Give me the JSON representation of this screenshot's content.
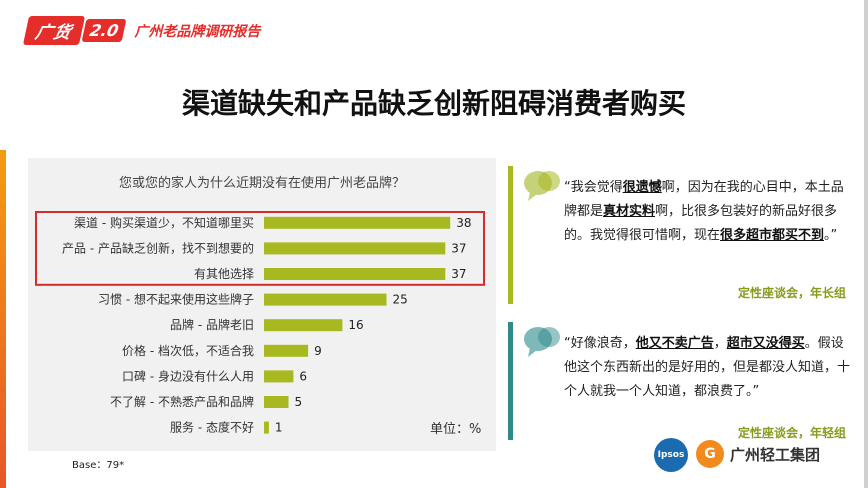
{
  "header": {
    "brand_logo": "广货",
    "brand_version": "2.0",
    "brand_subtitle": "广州老品牌调研报告"
  },
  "title": "渠道缺失和产品缺乏创新阻碍消费者购买",
  "chart_data": {
    "type": "bar",
    "orientation": "horizontal",
    "title": "您或您的家人为什么近期没有在使用广州老品牌？",
    "categories": [
      "渠道 - 购买渠道少，不知道哪里买",
      "产品 - 产品缺乏创新，找不到想要的",
      "有其他选择",
      "习惯 - 想不起来使用这些牌子",
      "品牌 - 品牌老旧",
      "价格 - 档次低，不适合我",
      "口碑 - 身边没有什么人用",
      "不了解 - 不熟悉产品和品牌",
      "服务 - 态度不好"
    ],
    "values": [
      38,
      37,
      37,
      25,
      16,
      9,
      6,
      5,
      1
    ],
    "highlighted": [
      0,
      1,
      2
    ],
    "bar_color": "#a8b820",
    "highlight_border_color": "#d62b2b",
    "unit_label": "单位：%",
    "xlim": [
      0,
      40
    ]
  },
  "base_note": "Base：79*",
  "quotes": [
    {
      "segments": [
        {
          "t": "“我会觉得",
          "b": false
        },
        {
          "t": "很遗憾",
          "b": true
        },
        {
          "t": "啊，因为在我的心目中，本土品牌都是",
          "b": false
        },
        {
          "t": "真材实料",
          "b": true
        },
        {
          "t": "啊，比很多包装好的新品好很多的。我觉得很可惜啊，现在",
          "b": false
        },
        {
          "t": "很多超市都买不到",
          "b": true
        },
        {
          "t": "。”",
          "b": false
        }
      ],
      "source": "定性座谈会，年长组",
      "accent": "#a8b820"
    },
    {
      "segments": [
        {
          "t": "“好像浪奇，",
          "b": false
        },
        {
          "t": "他又不卖广告",
          "b": true
        },
        {
          "t": "，",
          "b": false
        },
        {
          "t": "超市又没得买",
          "b": true
        },
        {
          "t": "。假设他这个东西新出的是好用的，但是都没人知道，十个人就我一个人知道，都浪费了。”",
          "b": false
        }
      ],
      "source": "定性座谈会，年轻组",
      "accent": "#2f8a8a"
    }
  ],
  "logos": {
    "ipsos": "Ipsos",
    "company_mark": "G",
    "company": "广州轻工集团"
  }
}
